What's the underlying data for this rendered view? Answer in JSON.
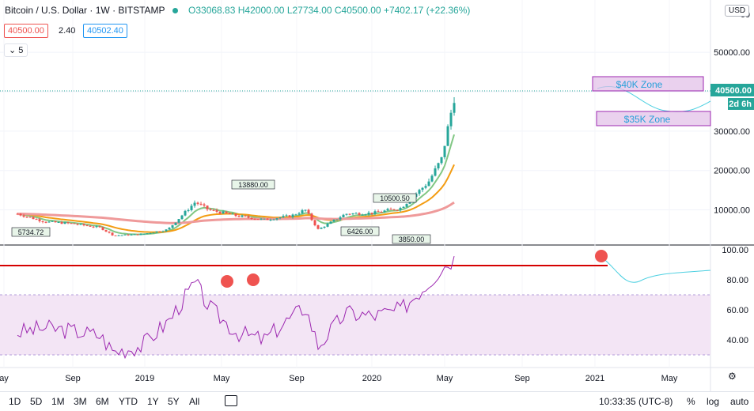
{
  "header": {
    "symbol": "Bitcoin / U.S. Dollar",
    "interval": "1W",
    "exchange": "BITSTAMP",
    "open": "O33068.83",
    "high": "H42000.00",
    "low": "L27734.00",
    "close": "C40500.00",
    "change": "+7402.17 (+22.36%)"
  },
  "quote": {
    "sell": "40500.00",
    "spread": "2.40",
    "buy": "40502.40"
  },
  "indicators_count": "5",
  "currency": "USD",
  "price_axis": [
    "50000.00",
    "40000.00",
    "30000.00",
    "20000.00",
    "10000.00"
  ],
  "rsi_axis": [
    "100.00",
    "80.00",
    "60.00",
    "40.00"
  ],
  "current_price": "40500.00",
  "countdown": "2d 6h",
  "zones": [
    "$40K Zone",
    "$35K Zone"
  ],
  "price_labels": [
    "13880.00",
    "10500.50",
    "5734.72",
    "6426.00",
    "3850.00"
  ],
  "time_axis": [
    "ay",
    "Sep",
    "2019",
    "May",
    "Sep",
    "2020",
    "May",
    "Sep",
    "2021",
    "May"
  ],
  "timeframes": [
    "1D",
    "5D",
    "1M",
    "3M",
    "6M",
    "YTD",
    "1Y",
    "5Y",
    "All"
  ],
  "clock": "10:33:35 (UTC-8)",
  "scale_options": [
    "%",
    "log",
    "auto"
  ],
  "colors": {
    "up": "#26a69a",
    "down": "#ef5350",
    "rsi": "#9c27b0",
    "zone": "#e1bee7",
    "ema_fast": "#81c784",
    "ema_mid": "#f39c12",
    "ema_slow": "#ef9a9a"
  },
  "chart_data": [
    {
      "type": "line",
      "title": "",
      "series": [
        {
          "name": "",
          "x": [
            "2018-05",
            "2018-07",
            "2018-09",
            "2018-11",
            "2018-12",
            "2019-02",
            "2019-04",
            "2019-06",
            "2019-07",
            "2019-09",
            "2019-11",
            "2020-01",
            "2020-02",
            "2020-03",
            "2020-05",
            "2020-07",
            "2020-09",
            "2020-11",
            "2020-12",
            "2021-01"
          ],
          "values": [
            9000,
            7000,
            6500,
            5500,
            3500,
            3800,
            5000,
            12000,
            10000,
            8500,
            7500,
            8500,
            10000,
            5000,
            9000,
            9200,
            10500,
            17000,
            23000,
            40500
          ]
        }
      ],
      "ylim": [
        0,
        60000
      ]
    },
    {
      "type": "line",
      "title": "",
      "series": [
        {
          "name": "",
          "x": [
            "2018-05",
            "2018-07",
            "2018-09",
            "2018-11",
            "2018-12",
            "2019-02",
            "2019-04",
            "2019-06",
            "2019-07",
            "2019-09",
            "2019-11",
            "2020-01",
            "2020-02",
            "2020-03",
            "2020-05",
            "2020-07",
            "2020-09",
            "2020-11",
            "2020-12",
            "2021-01"
          ],
          "values": [
            45,
            48,
            46,
            43,
            32,
            36,
            52,
            78,
            62,
            45,
            40,
            55,
            62,
            36,
            58,
            56,
            60,
            78,
            88,
            95
          ]
        }
      ],
      "ylim": [
        30,
        100
      ]
    }
  ]
}
